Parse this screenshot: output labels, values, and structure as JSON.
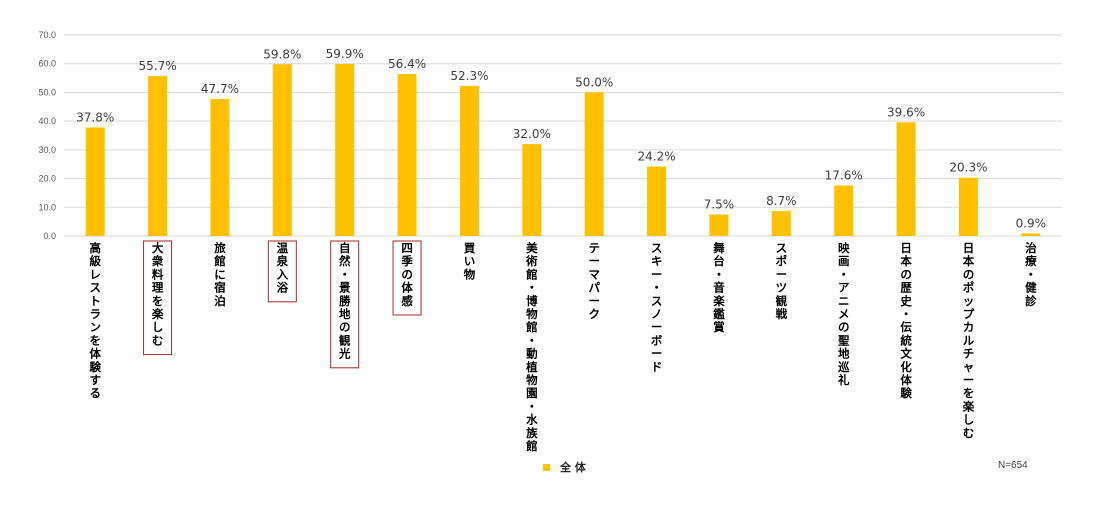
{
  "chart_data": {
    "type": "bar",
    "categories": [
      "高級レストランを体験する",
      "大衆料理を楽しむ",
      "旅館に宿泊",
      "温泉入浴",
      "自然・景勝地の観光",
      "四季の体感",
      "買い物",
      "美術館・博物館・動植物園・水族館",
      "テーマパーク",
      "スキー・スノーボード",
      "舞台・音楽鑑賞",
      "スポーツ観戦",
      "映画・アニメの聖地巡礼",
      "日本の歴史・伝統文化体験",
      "日本のポップカルチャーを楽しむ",
      "治療・健診"
    ],
    "series": [
      {
        "name": "全体",
        "values": [
          37.8,
          55.7,
          47.7,
          59.8,
          59.9,
          56.4,
          52.3,
          32.0,
          50.0,
          24.2,
          7.5,
          8.7,
          17.6,
          39.6,
          20.3,
          0.9
        ]
      }
    ],
    "data_labels": [
      "37.8%",
      "55.7%",
      "47.7%",
      "59.8%",
      "59.9%",
      "56.4%",
      "52.3%",
      "32.0%",
      "50.0%",
      "24.2%",
      "7.5%",
      "8.7%",
      "17.6%",
      "39.6%",
      "20.3%",
      "0.9%"
    ],
    "highlighted_categories": [
      1,
      3,
      4,
      5
    ],
    "y_ticks": [
      "0.0",
      "10.0",
      "20.0",
      "30.0",
      "40.0",
      "50.0",
      "60.0",
      "70.0"
    ],
    "ylim": [
      0,
      70
    ],
    "grid": true,
    "legend_position": "bottom",
    "title": "",
    "xlabel": "",
    "ylabel": "",
    "colors": {
      "bar": "#FFC000",
      "grid": "#D9D9D9",
      "highlight_border": "#A52A2A"
    }
  },
  "footer": {
    "legend_label": "全 体",
    "sample_size": "N=654"
  }
}
